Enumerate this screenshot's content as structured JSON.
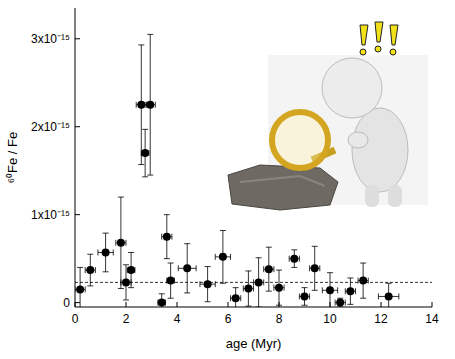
{
  "chart_data": {
    "type": "scatter",
    "x_label": "age (Myr)",
    "y_label": "⁶⁰Fe / Fe",
    "x": [
      0.2,
      0.6,
      1.2,
      1.8,
      2.0,
      2.2,
      2.6,
      2.75,
      2.95,
      3.4,
      3.6,
      3.75,
      4.4,
      5.2,
      5.8,
      6.3,
      6.8,
      7.2,
      7.6,
      8.0,
      8.6,
      9.0,
      9.4,
      10.0,
      10.4,
      10.8,
      11.3,
      12.3
    ],
    "values": [
      1.5e-16,
      3.7e-16,
      5.7e-16,
      6.8e-16,
      2.3e-16,
      3.7e-16,
      2.25e-15,
      1.7e-15,
      2.25e-15,
      0,
      7.5e-16,
      2.5e-16,
      3.9e-16,
      2.1e-16,
      5.2e-16,
      5e-17,
      1.6e-16,
      2.3e-16,
      3.8e-16,
      1.7e-16,
      5e-16,
      7e-17,
      3.9e-16,
      1.4e-16,
      0,
      1.3e-16,
      2.5e-16,
      7e-17
    ],
    "xerr": [
      0.2,
      0.2,
      0.3,
      0.2,
      0.2,
      0.15,
      0.2,
      0.15,
      0.2,
      0.15,
      0.2,
      0.15,
      0.35,
      0.3,
      0.3,
      0.2,
      0.2,
      0.2,
      0.2,
      0.2,
      0.2,
      0.2,
      0.2,
      0.3,
      0.2,
      0.2,
      0.2,
      0.4
    ],
    "yerr": [
      2.5e-16,
      1.8e-16,
      2.2e-16,
      5.2e-16,
      2e-16,
      2e-16,
      6.8e-16,
      2.7e-16,
      8e-16,
      1e-16,
      2.5e-16,
      2e-16,
      2.8e-16,
      2e-16,
      3e-16,
      1.2e-16,
      2e-16,
      2.8e-16,
      2.5e-16,
      2e-16,
      1e-16,
      1e-16,
      2.5e-16,
      2e-16,
      5e-17,
      1.5e-16,
      2e-16,
      1.5e-16
    ],
    "baseline": 2.3e-16,
    "color": "#000000",
    "marker": "circle",
    "xlim": [
      0,
      14
    ],
    "xticks": [
      0,
      2,
      4,
      6,
      8,
      10,
      12,
      14
    ],
    "ylim": [
      -5e-17,
      3.35e-15
    ],
    "yticks": [
      0,
      {
        "value": 1e-15,
        "label": "1x10⁻¹⁵"
      },
      {
        "value": 2e-15,
        "label": "2x10⁻¹⁵"
      },
      {
        "value": 3e-15,
        "label": "3x10⁻¹⁵"
      }
    ],
    "grid": false
  }
}
